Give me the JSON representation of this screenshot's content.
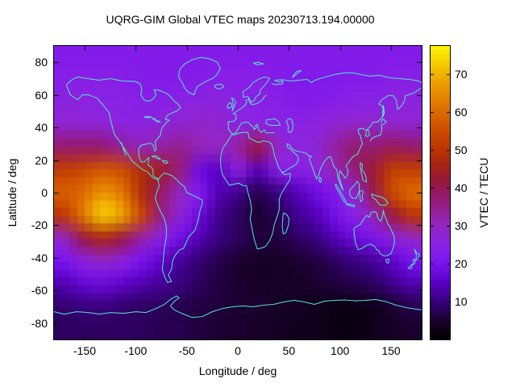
{
  "figure": {
    "background_color": "#ffffff"
  },
  "chart_data": {
    "type": "heatmap",
    "title": "UQRG-GIM Global VTEC maps 20230713.194.00000",
    "xlabel": "Longitude / deg",
    "ylabel": "Latitude / deg",
    "colorbar_label": "VTEC / TECU",
    "units": "TECU",
    "xlim": [
      -180,
      180
    ],
    "ylim": [
      -90,
      90
    ],
    "colorbar_range": [
      0,
      77.5
    ],
    "xticks": [
      -150,
      -100,
      -50,
      0,
      50,
      100,
      150
    ],
    "yticks": [
      80,
      60,
      40,
      20,
      0,
      -20,
      -40,
      -60,
      -80
    ],
    "colorbar_ticks": [
      10,
      20,
      30,
      40,
      50,
      60,
      70
    ],
    "grid_on": false,
    "legend_position": "right-colorbar",
    "coastline_color": "#55e6cf",
    "palette_stops": [
      [
        0,
        "#000000"
      ],
      [
        5,
        "#1b0030"
      ],
      [
        10,
        "#3a0080"
      ],
      [
        15,
        "#5b00c4"
      ],
      [
        20,
        "#7a14f0"
      ],
      [
        25,
        "#8a22e4"
      ],
      [
        30,
        "#9226c2"
      ],
      [
        34,
        "#941f96"
      ],
      [
        38,
        "#951a68"
      ],
      [
        42,
        "#98173c"
      ],
      [
        46,
        "#a62314"
      ],
      [
        50,
        "#ba3404"
      ],
      [
        55,
        "#cc4c00"
      ],
      [
        60,
        "#dc6a00"
      ],
      [
        65,
        "#e78c00"
      ],
      [
        70,
        "#f0b000"
      ],
      [
        74,
        "#f6d800"
      ],
      [
        77.5,
        "#fbf306"
      ]
    ],
    "grid": {
      "lons": [
        -180,
        -160,
        -140,
        -120,
        -100,
        -80,
        -60,
        -40,
        -20,
        0,
        20,
        40,
        60,
        80,
        100,
        120,
        140,
        160,
        180
      ],
      "lats": [
        90,
        75,
        60,
        45,
        30,
        15,
        0,
        -15,
        -30,
        -45,
        -60,
        -75,
        -90
      ],
      "vtec_values": [
        [
          23,
          23,
          23,
          23,
          23,
          23,
          23,
          23,
          23,
          23,
          23,
          23,
          23,
          23,
          23,
          23,
          23,
          23,
          23
        ],
        [
          24,
          24,
          24,
          24,
          23,
          23,
          23,
          23,
          24,
          24,
          24,
          23,
          22,
          22,
          22,
          23,
          23,
          24,
          24
        ],
        [
          26,
          26,
          25,
          25,
          24,
          24,
          25,
          26,
          26,
          25,
          25,
          24,
          23,
          23,
          24,
          25,
          25,
          26,
          26
        ],
        [
          28,
          28,
          27,
          26,
          26,
          27,
          28,
          29,
          28,
          26,
          26,
          25,
          25,
          26,
          28,
          29,
          29,
          29,
          28
        ],
        [
          38,
          38,
          38,
          34,
          31,
          33,
          35,
          31,
          30,
          33,
          42,
          30,
          26,
          27,
          33,
          38,
          37,
          40,
          38
        ],
        [
          52,
          54,
          57,
          55,
          48,
          44,
          36,
          18,
          15,
          25,
          14,
          24,
          24,
          26,
          31,
          36,
          43,
          52,
          52
        ],
        [
          58,
          60,
          66,
          62,
          48,
          38,
          30,
          22,
          14,
          11,
          7,
          10,
          14,
          18,
          22,
          28,
          40,
          55,
          60
        ],
        [
          50,
          62,
          73,
          68,
          54,
          36,
          27,
          18,
          11,
          8,
          5,
          7,
          11,
          14,
          19,
          25,
          31,
          42,
          50
        ],
        [
          30,
          42,
          47,
          42,
          33,
          25,
          19,
          14,
          10,
          8,
          6,
          6,
          8,
          10,
          14,
          18,
          21,
          26,
          30
        ],
        [
          20,
          26,
          29,
          26,
          20,
          16,
          12,
          9,
          7,
          5,
          4,
          4,
          5,
          6,
          8,
          10,
          12,
          16,
          20
        ],
        [
          14,
          17,
          18,
          16,
          14,
          12,
          10,
          8,
          6,
          5,
          4,
          4,
          4,
          5,
          6,
          7,
          8,
          11,
          14
        ],
        [
          9,
          10,
          10,
          9,
          8,
          8,
          7,
          6,
          6,
          5,
          5,
          4,
          4,
          3,
          2,
          2,
          3,
          5,
          7
        ],
        [
          8,
          8,
          8,
          8,
          8,
          7,
          7,
          6,
          5,
          5,
          4,
          4,
          3,
          3,
          2,
          2,
          3,
          4,
          5
        ]
      ]
    }
  }
}
